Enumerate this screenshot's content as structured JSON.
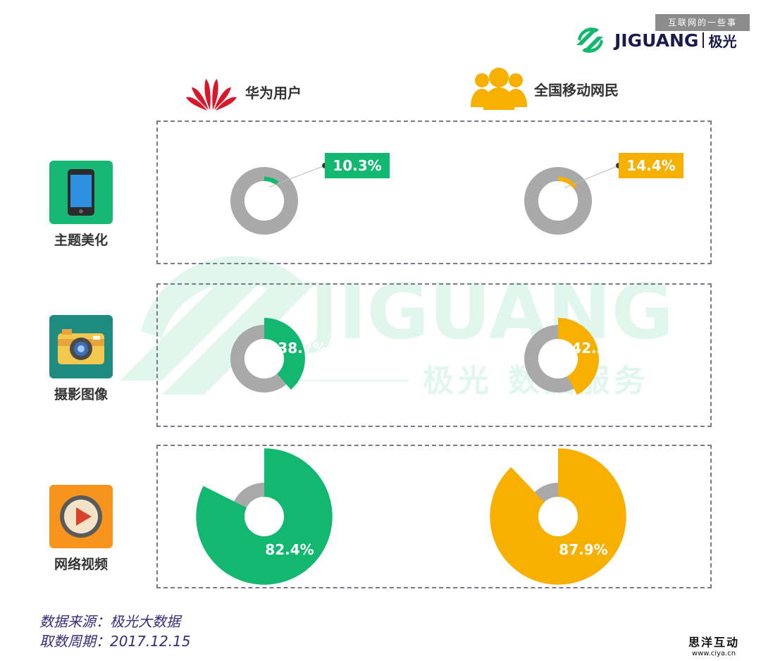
{
  "header": {
    "top_badge": "互联网的一些事",
    "brand_name": "JIGUANG",
    "brand_cn": "极光"
  },
  "legend": [
    {
      "label": "华为用户",
      "color": "#12b870",
      "icon": "huawei-logo-icon"
    },
    {
      "label": "全国移动网民",
      "color": "#f7b000",
      "icon": "people-icon"
    }
  ],
  "categories": [
    {
      "label": "主题美化",
      "icon": "phone-icon",
      "icon_bg": "#17b873"
    },
    {
      "label": "摄影图像",
      "icon": "camera-icon",
      "icon_bg": "#1e8a80"
    },
    {
      "label": "网络视频",
      "icon": "video-play-icon",
      "icon_bg": "#f7941d"
    }
  ],
  "chart_data": {
    "type": "pie",
    "categories": [
      "主题美化",
      "摄影图像",
      "网络视频"
    ],
    "series": [
      {
        "name": "华为用户",
        "values": [
          10.3,
          38.7,
          82.4
        ],
        "labels": [
          "10.3%",
          "38.7%",
          "82.4%"
        ]
      },
      {
        "name": "全国移动网民",
        "values": [
          14.4,
          42.3,
          87.9
        ],
        "labels": [
          "14.4%",
          "42.3%",
          "87.9%"
        ]
      }
    ],
    "colors": {
      "huawei": "#12b870",
      "national": "#f7b000",
      "remainder": "#a9a9a9"
    }
  },
  "watermark": {
    "brand": "JIGUANG",
    "cn": "极光 数据服务"
  },
  "source": {
    "line1": "数据来源：极光大数据",
    "line2": "取数周期：2017.12.15"
  },
  "footer": {
    "cn": "思洋互动",
    "url": "www.ciya.cn"
  }
}
